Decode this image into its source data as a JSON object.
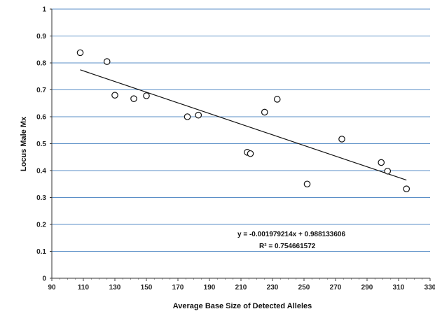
{
  "chart_data": {
    "type": "scatter",
    "title": "",
    "xlabel": "Average Base Size of Detected Alleles",
    "ylabel": "Locus Male Mx",
    "xlim": [
      90,
      330
    ],
    "ylim": [
      0,
      1
    ],
    "x_ticks": [
      "90",
      "110",
      "130",
      "150",
      "170",
      "190",
      "210",
      "230",
      "250",
      "270",
      "290",
      "310",
      "330"
    ],
    "y_ticks": [
      "0",
      "0.1",
      "0.2",
      "0.3",
      "0.4",
      "0.5",
      "0.6",
      "0.7",
      "0.8",
      "0.9",
      "1"
    ],
    "grid": "horizontal",
    "series": [
      {
        "points": [
          {
            "x": 108,
            "y": 0.838
          },
          {
            "x": 125,
            "y": 0.805
          },
          {
            "x": 130,
            "y": 0.68
          },
          {
            "x": 142,
            "y": 0.667
          },
          {
            "x": 150,
            "y": 0.678
          },
          {
            "x": 176,
            "y": 0.6
          },
          {
            "x": 183,
            "y": 0.606
          },
          {
            "x": 214,
            "y": 0.468
          },
          {
            "x": 216,
            "y": 0.463
          },
          {
            "x": 225,
            "y": 0.617
          },
          {
            "x": 233,
            "y": 0.665
          },
          {
            "x": 252,
            "y": 0.35
          },
          {
            "x": 274,
            "y": 0.517
          },
          {
            "x": 299,
            "y": 0.43
          },
          {
            "x": 303,
            "y": 0.398
          },
          {
            "x": 315,
            "y": 0.332
          }
        ]
      }
    ],
    "trendline": {
      "slope": -0.001979214,
      "intercept": 0.988133606,
      "x_start": 108,
      "x_end": 315,
      "equation": "y = -0.001979214x + 0.988133606",
      "r_squared": "R² = 0.754661572"
    }
  }
}
